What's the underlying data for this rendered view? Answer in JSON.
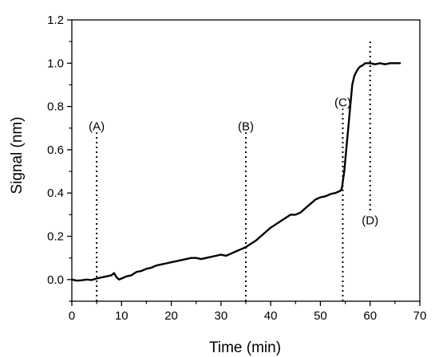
{
  "chart_data": {
    "type": "line",
    "title": "",
    "xlabel": "Time (min)",
    "ylabel": "Signal (nm)",
    "xlim": [
      0,
      70
    ],
    "ylim": [
      -0.1,
      1.2
    ],
    "xticks": [
      0,
      10,
      20,
      30,
      40,
      50,
      60,
      70
    ],
    "yticks": [
      0.0,
      0.2,
      0.4,
      0.6,
      0.8,
      1.0,
      1.2
    ],
    "xtick_labels": [
      "0",
      "10",
      "20",
      "30",
      "40",
      "50",
      "60",
      "70"
    ],
    "ytick_labels": [
      "0.0",
      "0.2",
      "0.4",
      "0.6",
      "0.8",
      "1.0",
      "1.2"
    ],
    "grid": false,
    "legend": false,
    "series": [
      {
        "color": "#000000",
        "x": [
          0,
          1,
          2,
          3,
          4,
          5,
          6,
          7,
          8,
          8.5,
          9,
          9.5,
          10,
          11,
          12,
          13,
          14,
          15,
          16,
          17,
          18,
          19,
          20,
          21,
          22,
          23,
          24,
          25,
          26,
          27,
          28,
          29,
          30,
          31,
          32,
          33,
          34,
          35,
          36,
          37,
          38,
          39,
          40,
          41,
          42,
          43,
          44,
          45,
          46,
          47,
          48,
          49,
          50,
          51,
          52,
          53,
          54,
          54.3,
          54.8,
          55.2,
          55.6,
          56.0,
          56.4,
          56.8,
          57.2,
          57.6,
          58,
          58.5,
          59,
          60,
          61,
          62,
          63,
          64,
          65,
          66
        ],
        "y": [
          0.0,
          -0.005,
          -0.003,
          0.0,
          -0.002,
          0.005,
          0.01,
          0.015,
          0.02,
          0.03,
          0.01,
          0.0,
          0.005,
          0.015,
          0.02,
          0.035,
          0.04,
          0.05,
          0.055,
          0.065,
          0.07,
          0.075,
          0.08,
          0.085,
          0.09,
          0.095,
          0.1,
          0.1,
          0.095,
          0.1,
          0.105,
          0.11,
          0.115,
          0.11,
          0.12,
          0.13,
          0.14,
          0.15,
          0.165,
          0.18,
          0.2,
          0.22,
          0.24,
          0.255,
          0.27,
          0.285,
          0.3,
          0.3,
          0.31,
          0.33,
          0.35,
          0.37,
          0.38,
          0.385,
          0.395,
          0.4,
          0.41,
          0.42,
          0.5,
          0.6,
          0.7,
          0.8,
          0.9,
          0.94,
          0.96,
          0.975,
          0.985,
          0.99,
          1.0,
          1.0,
          0.995,
          1.0,
          0.995,
          1.0,
          1.0,
          1.0
        ]
      }
    ],
    "annotations": [
      {
        "label": "(A)",
        "x": 5,
        "y_from": -0.1,
        "y_to": 0.68,
        "label_y": 0.69,
        "label_side": "top"
      },
      {
        "label": "(B)",
        "x": 35,
        "y_from": -0.1,
        "y_to": 0.68,
        "label_y": 0.69,
        "label_side": "top"
      },
      {
        "label": "(C)",
        "x": 54.5,
        "y_from": -0.1,
        "y_to": 0.79,
        "label_y": 0.8,
        "label_side": "top"
      },
      {
        "label": "(D)",
        "x": 60,
        "y_from": 0.32,
        "y_to": 1.1,
        "label_y": 0.27,
        "label_side": "bottom"
      }
    ]
  }
}
